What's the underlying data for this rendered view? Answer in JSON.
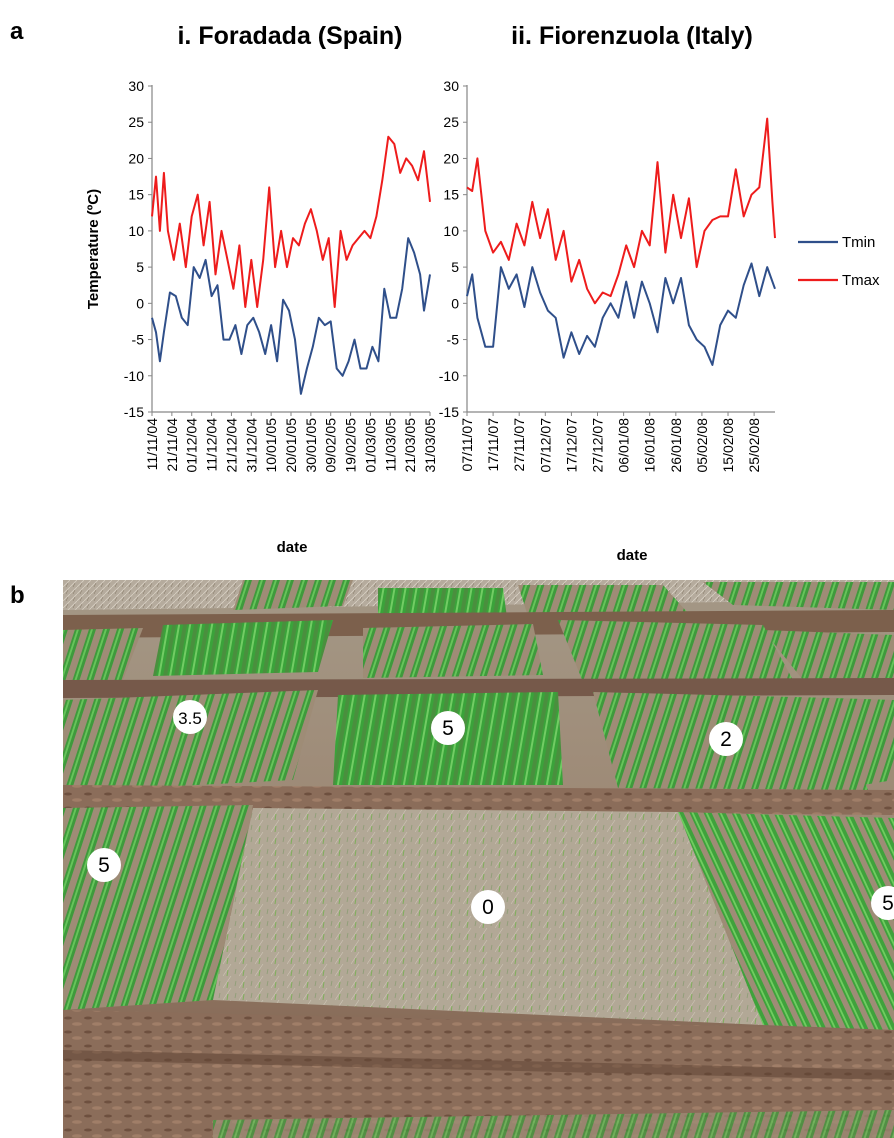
{
  "panel_a_label": "a",
  "panel_b_label": "b",
  "chart_data": [
    {
      "type": "line",
      "title": "i. Foradada (Spain)",
      "xlabel": "date",
      "ylabel": "Temperature (ºC)",
      "ylim": [
        -15,
        30
      ],
      "yticks": [
        -15,
        -10,
        -5,
        0,
        5,
        10,
        15,
        20,
        25,
        30
      ],
      "x_tick_labels": [
        "11/11/04",
        "21/11/04",
        "01/12/04",
        "11/12/04",
        "21/12/04",
        "31/12/04",
        "10/01/05",
        "20/01/05",
        "30/01/05",
        "09/02/05",
        "19/02/05",
        "01/03/05",
        "11/03/05",
        "21/03/05",
        "31/03/05"
      ],
      "x_start": "2004-11-11",
      "x_end": "2005-03-31",
      "grid": false,
      "series": [
        {
          "name": "Tmin",
          "color": "#2f4f8a",
          "x": [
            "2004-11-11",
            "2004-11-13",
            "2004-11-15",
            "2004-11-17",
            "2004-11-20",
            "2004-11-23",
            "2004-11-26",
            "2004-11-29",
            "2004-12-02",
            "2004-12-05",
            "2004-12-08",
            "2004-12-11",
            "2004-12-14",
            "2004-12-17",
            "2004-12-20",
            "2004-12-23",
            "2004-12-26",
            "2004-12-29",
            "2005-01-01",
            "2005-01-04",
            "2005-01-07",
            "2005-01-10",
            "2005-01-13",
            "2005-01-16",
            "2005-01-19",
            "2005-01-22",
            "2005-01-25",
            "2005-01-28",
            "2005-01-31",
            "2005-02-03",
            "2005-02-06",
            "2005-02-09",
            "2005-02-12",
            "2005-02-15",
            "2005-02-18",
            "2005-02-21",
            "2005-02-24",
            "2005-02-27",
            "2005-03-02",
            "2005-03-05",
            "2005-03-08",
            "2005-03-11",
            "2005-03-14",
            "2005-03-17",
            "2005-03-20",
            "2005-03-23",
            "2005-03-26",
            "2005-03-28",
            "2005-03-31"
          ],
          "values": [
            -2,
            -4,
            -8,
            -4,
            1.5,
            1,
            -2,
            -3,
            5,
            3.5,
            6,
            1,
            2.5,
            -5,
            -5,
            -3,
            -7,
            -3,
            -2,
            -4,
            -7,
            -3,
            -8,
            0.5,
            -1,
            -5,
            -12.5,
            -9,
            -6,
            -2,
            -3,
            -2.5,
            -9,
            -10,
            -8,
            -5,
            -9,
            -9,
            -6,
            -8,
            2,
            -2,
            -2,
            2,
            9,
            7,
            4,
            -1,
            4
          ]
        },
        {
          "name": "Tmax",
          "color": "#ee1c1c",
          "x": [
            "2004-11-11",
            "2004-11-13",
            "2004-11-15",
            "2004-11-17",
            "2004-11-19",
            "2004-11-22",
            "2004-11-25",
            "2004-11-28",
            "2004-12-01",
            "2004-12-04",
            "2004-12-07",
            "2004-12-10",
            "2004-12-13",
            "2004-12-16",
            "2004-12-19",
            "2004-12-22",
            "2004-12-25",
            "2004-12-28",
            "2004-12-31",
            "2005-01-03",
            "2005-01-06",
            "2005-01-09",
            "2005-01-12",
            "2005-01-15",
            "2005-01-18",
            "2005-01-21",
            "2005-01-24",
            "2005-01-27",
            "2005-01-30",
            "2005-02-02",
            "2005-02-05",
            "2005-02-08",
            "2005-02-11",
            "2005-02-14",
            "2005-02-17",
            "2005-02-20",
            "2005-02-23",
            "2005-02-26",
            "2005-03-01",
            "2005-03-04",
            "2005-03-07",
            "2005-03-10",
            "2005-03-13",
            "2005-03-16",
            "2005-03-19",
            "2005-03-22",
            "2005-03-25",
            "2005-03-28",
            "2005-03-31"
          ],
          "values": [
            12,
            17.5,
            10,
            18,
            10,
            6,
            11,
            5,
            12,
            15,
            8,
            14,
            4,
            10,
            6,
            2,
            8,
            -0.5,
            6,
            -0.5,
            6,
            16,
            5,
            10,
            5,
            9,
            8,
            11,
            13,
            10,
            6,
            9,
            -0.5,
            10,
            6,
            8,
            9,
            10,
            9,
            12,
            17,
            23,
            22,
            18,
            20,
            19,
            17,
            21,
            14
          ]
        }
      ],
      "legend": "none"
    },
    {
      "type": "line",
      "title": "ii. Fiorenzuola (Italy)",
      "xlabel": "date",
      "ylabel": "",
      "ylim": [
        -15,
        30
      ],
      "yticks": [
        -15,
        -10,
        -5,
        0,
        5,
        10,
        15,
        20,
        25,
        30
      ],
      "x_tick_labels": [
        "07/11/07",
        "17/11/07",
        "27/11/07",
        "07/12/07",
        "17/12/07",
        "27/12/07",
        "06/01/08",
        "16/01/08",
        "26/01/08",
        "05/02/08",
        "15/02/08",
        "25/02/08"
      ],
      "x_start": "2007-11-07",
      "x_end": "2008-03-04",
      "grid": false,
      "series": [
        {
          "name": "Tmin",
          "color": "#2f4f8a",
          "x": [
            "2007-11-07",
            "2007-11-09",
            "2007-11-11",
            "2007-11-14",
            "2007-11-17",
            "2007-11-20",
            "2007-11-23",
            "2007-11-26",
            "2007-11-29",
            "2007-12-02",
            "2007-12-05",
            "2007-12-08",
            "2007-12-11",
            "2007-12-14",
            "2007-12-17",
            "2007-12-20",
            "2007-12-23",
            "2007-12-26",
            "2007-12-29",
            "2008-01-01",
            "2008-01-04",
            "2008-01-07",
            "2008-01-10",
            "2008-01-13",
            "2008-01-16",
            "2008-01-19",
            "2008-01-22",
            "2008-01-25",
            "2008-01-28",
            "2008-01-31",
            "2008-02-03",
            "2008-02-06",
            "2008-02-09",
            "2008-02-12",
            "2008-02-15",
            "2008-02-18",
            "2008-02-21",
            "2008-02-24",
            "2008-02-27",
            "2008-03-01",
            "2008-03-04"
          ],
          "values": [
            1,
            4,
            -2,
            -6,
            -6,
            5,
            2,
            4,
            -0.5,
            5,
            1.5,
            -1,
            -2,
            -7.5,
            -4,
            -7,
            -4.5,
            -6,
            -2,
            0,
            -2,
            3,
            -2,
            3,
            0,
            -4,
            3.5,
            0,
            3.5,
            -3,
            -5,
            -6,
            -8.5,
            -3,
            -1,
            -2,
            2.5,
            5.5,
            1,
            5,
            2
          ]
        },
        {
          "name": "Tmax",
          "color": "#ee1c1c",
          "x": [
            "2007-11-07",
            "2007-11-09",
            "2007-11-11",
            "2007-11-14",
            "2007-11-17",
            "2007-11-20",
            "2007-11-23",
            "2007-11-26",
            "2007-11-29",
            "2007-12-02",
            "2007-12-05",
            "2007-12-08",
            "2007-12-11",
            "2007-12-14",
            "2007-12-17",
            "2007-12-20",
            "2007-12-23",
            "2007-12-26",
            "2007-12-29",
            "2008-01-01",
            "2008-01-04",
            "2008-01-07",
            "2008-01-10",
            "2008-01-13",
            "2008-01-16",
            "2008-01-19",
            "2008-01-22",
            "2008-01-25",
            "2008-01-28",
            "2008-01-31",
            "2008-02-03",
            "2008-02-06",
            "2008-02-09",
            "2008-02-12",
            "2008-02-15",
            "2008-02-18",
            "2008-02-21",
            "2008-02-24",
            "2008-02-27",
            "2008-03-01",
            "2008-03-03",
            "2008-03-04"
          ],
          "values": [
            16,
            15.5,
            20,
            10,
            7,
            8.5,
            6,
            11,
            8,
            14,
            9,
            13,
            6,
            10,
            3,
            6,
            2,
            0,
            1.5,
            1,
            4,
            8,
            5,
            10,
            8,
            19.5,
            7,
            15,
            9,
            14.5,
            5,
            10,
            11.5,
            12,
            12,
            18.5,
            12,
            15,
            16,
            25.5,
            14,
            9
          ]
        }
      ],
      "legend": "right",
      "legend_entries": [
        "Tmin",
        "Tmax"
      ]
    }
  ],
  "photo": {
    "score_labels": [
      "3.5",
      "5",
      "2",
      "5",
      "0",
      "5"
    ]
  }
}
